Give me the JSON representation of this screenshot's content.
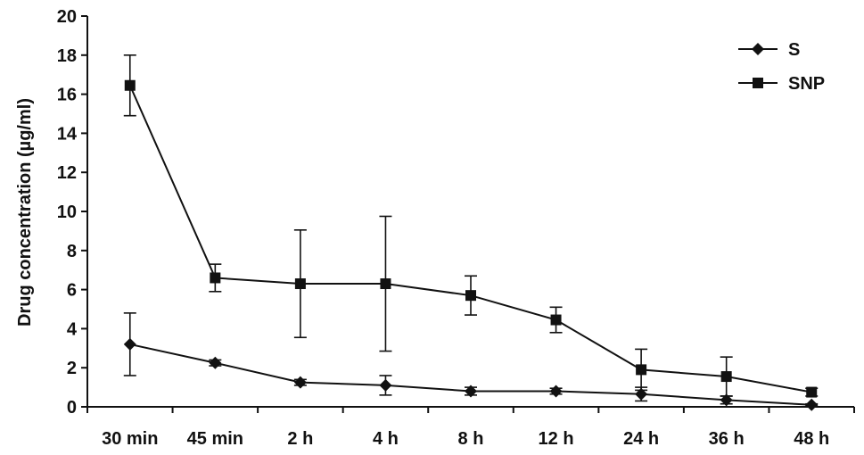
{
  "chart_data": {
    "type": "line",
    "title": "",
    "xlabel": "",
    "ylabel": "Drug concentration (µg/ml)",
    "categories": [
      "30 min",
      "45 min",
      "2 h",
      "4 h",
      "8 h",
      "12 h",
      "24 h",
      "36 h",
      "48 h"
    ],
    "ylim": [
      0,
      20
    ],
    "yticks": [
      "0",
      "2",
      "4",
      "6",
      "8",
      "10",
      "12",
      "14",
      "16",
      "18",
      "20"
    ],
    "grid": false,
    "legend_position": "top-right",
    "series": [
      {
        "name": "S",
        "marker": "diamond",
        "color": "#111111",
        "values": [
          3.2,
          2.25,
          1.25,
          1.1,
          0.8,
          0.8,
          0.65,
          0.35,
          0.1
        ],
        "error": [
          1.6,
          0.15,
          0.15,
          0.5,
          0.2,
          0.15,
          0.35,
          0.2,
          0.05
        ]
      },
      {
        "name": "SNP",
        "marker": "square",
        "color": "#111111",
        "values": [
          16.45,
          6.6,
          6.3,
          6.3,
          5.7,
          4.45,
          1.9,
          1.55,
          0.75
        ],
        "error": [
          1.55,
          0.7,
          2.75,
          3.45,
          1.0,
          0.65,
          1.05,
          1.0,
          0.2
        ]
      }
    ]
  }
}
